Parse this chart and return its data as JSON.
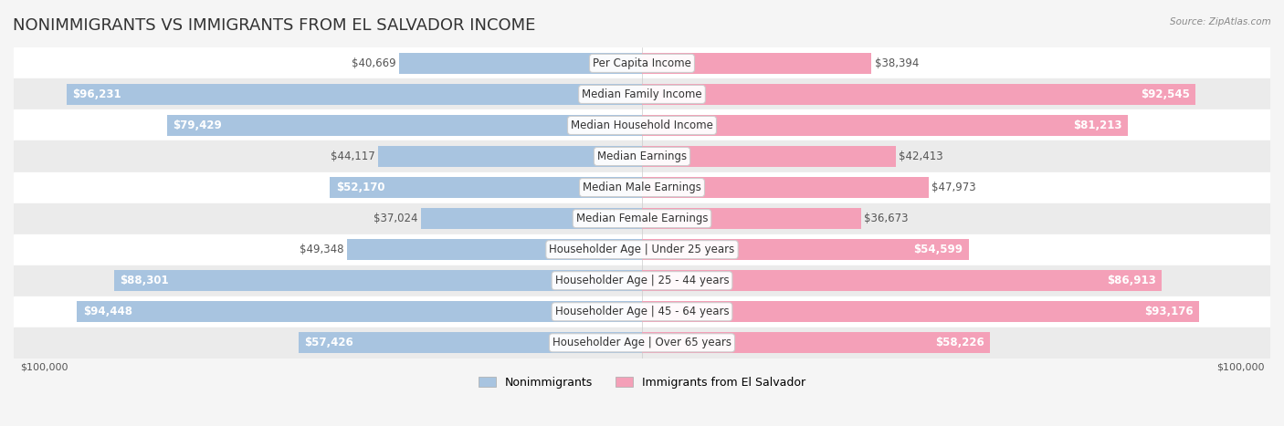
{
  "title": "NONIMMIGRANTS VS IMMIGRANTS FROM EL SALVADOR INCOME",
  "source": "Source: ZipAtlas.com",
  "categories": [
    "Per Capita Income",
    "Median Family Income",
    "Median Household Income",
    "Median Earnings",
    "Median Male Earnings",
    "Median Female Earnings",
    "Householder Age | Under 25 years",
    "Householder Age | 25 - 44 years",
    "Householder Age | 45 - 64 years",
    "Householder Age | Over 65 years"
  ],
  "nonimmigrant_values": [
    40669,
    96231,
    79429,
    44117,
    52170,
    37024,
    49348,
    88301,
    94448,
    57426
  ],
  "immigrant_values": [
    38394,
    92545,
    81213,
    42413,
    47973,
    36673,
    54599,
    86913,
    93176,
    58226
  ],
  "nonimmigrant_labels": [
    "$40,669",
    "$96,231",
    "$79,429",
    "$44,117",
    "$52,170",
    "$37,024",
    "$49,348",
    "$88,301",
    "$94,448",
    "$57,426"
  ],
  "immigrant_labels": [
    "$38,394",
    "$92,545",
    "$81,213",
    "$42,413",
    "$47,973",
    "$36,673",
    "$54,599",
    "$86,913",
    "$93,176",
    "$58,226"
  ],
  "nonimmigrant_color": "#a8c4e0",
  "immigrant_color": "#f4a0b8",
  "nonimmigrant_color_dark": "#7aafd4",
  "immigrant_color_dark": "#f07090",
  "max_value": 100000,
  "bar_height": 0.38,
  "background_color": "#f5f5f5",
  "row_bg_light": "#ffffff",
  "row_bg_dark": "#ebebeb",
  "title_fontsize": 13,
  "label_fontsize": 8.5,
  "category_fontsize": 8.5,
  "legend_fontsize": 9,
  "axis_label_fontsize": 8
}
